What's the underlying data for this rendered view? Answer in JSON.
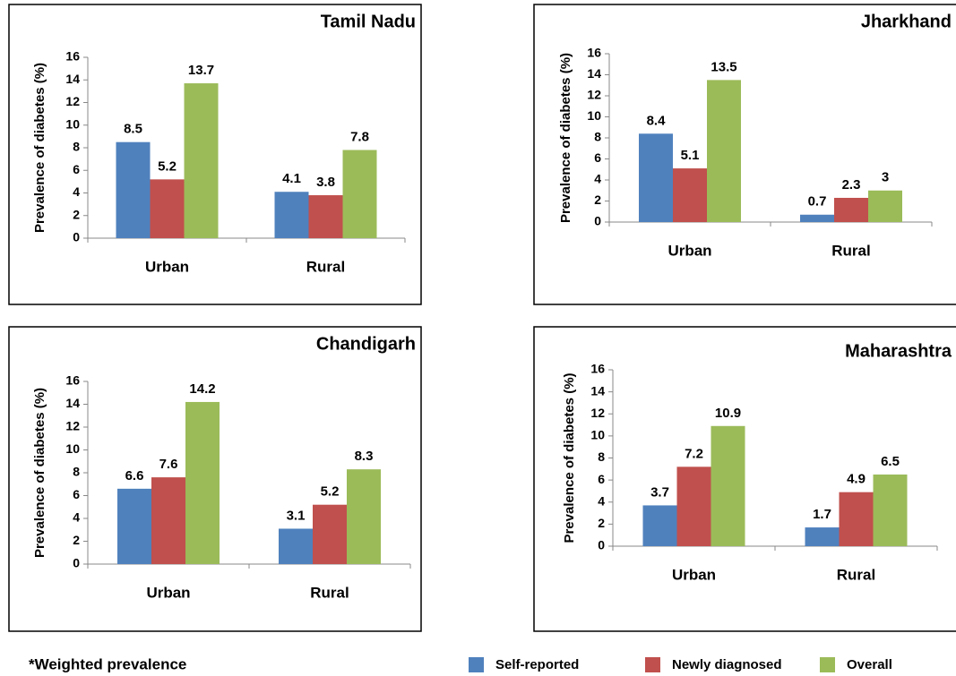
{
  "chart_data": [
    {
      "type": "bar",
      "title": "Tamil Nadu",
      "y_label": "Prevalence of diabetes (%)",
      "categories": [
        "Urban",
        "Rural"
      ],
      "series": [
        {
          "name": "Self-reported",
          "color": "#4f81bd",
          "values": [
            8.5,
            4.1
          ]
        },
        {
          "name": "Newly diagnosed",
          "color": "#c0504d",
          "values": [
            5.2,
            3.8
          ]
        },
        {
          "name": "Overall",
          "color": "#9bbb59",
          "values": [
            13.7,
            7.8
          ]
        }
      ],
      "ylim": [
        0,
        16
      ],
      "yticks": [
        0,
        2,
        4,
        6,
        8,
        10,
        12,
        14,
        16
      ]
    },
    {
      "type": "bar",
      "title": "Jharkhand",
      "y_label": "Prevalence of diabetes (%)",
      "categories": [
        "Urban",
        "Rural"
      ],
      "series": [
        {
          "name": "Self-reported",
          "color": "#4f81bd",
          "values": [
            8.4,
            0.7
          ]
        },
        {
          "name": "Newly diagnosed",
          "color": "#c0504d",
          "values": [
            5.1,
            2.3
          ]
        },
        {
          "name": "Overall",
          "color": "#9bbb59",
          "values": [
            13.5,
            3
          ]
        }
      ],
      "ylim": [
        0,
        16
      ],
      "yticks": [
        0,
        2,
        4,
        6,
        8,
        10,
        12,
        14,
        16
      ]
    },
    {
      "type": "bar",
      "title": "Chandigarh",
      "y_label": "Prevalence of diabetes (%)",
      "categories": [
        "Urban",
        "Rural"
      ],
      "series": [
        {
          "name": "Self-reported",
          "color": "#4f81bd",
          "values": [
            6.6,
            3.1
          ]
        },
        {
          "name": "Newly diagnosed",
          "color": "#c0504d",
          "values": [
            7.6,
            5.2
          ]
        },
        {
          "name": "Overall",
          "color": "#9bbb59",
          "values": [
            14.2,
            8.3
          ]
        }
      ],
      "ylim": [
        0,
        16
      ],
      "yticks": [
        0,
        2,
        4,
        6,
        8,
        10,
        12,
        14,
        16
      ]
    },
    {
      "type": "bar",
      "title": "Maharashtra",
      "y_label": "Prevalence of diabetes (%)",
      "categories": [
        "Urban",
        "Rural"
      ],
      "series": [
        {
          "name": "Self-reported",
          "color": "#4f81bd",
          "values": [
            3.7,
            1.7
          ]
        },
        {
          "name": "Newly diagnosed",
          "color": "#c0504d",
          "values": [
            7.2,
            4.9
          ]
        },
        {
          "name": "Overall",
          "color": "#9bbb59",
          "values": [
            10.9,
            6.5
          ]
        }
      ],
      "ylim": [
        0,
        16
      ],
      "yticks": [
        0,
        2,
        4,
        6,
        8,
        10,
        12,
        14,
        16
      ]
    }
  ],
  "footnote": "*Weighted prevalence"
}
